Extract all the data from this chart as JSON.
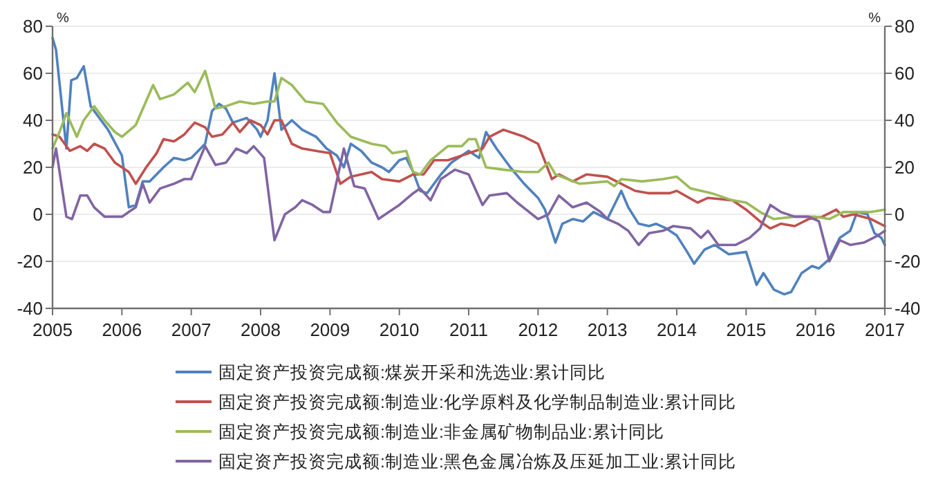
{
  "chart_data": {
    "type": "line",
    "ylabel": "%",
    "y2label": "%",
    "xlim": [
      2005,
      2017
    ],
    "xticks": [
      2005,
      2006,
      2007,
      2008,
      2009,
      2010,
      2011,
      2012,
      2013,
      2014,
      2015,
      2016,
      2017
    ],
    "ylim": [
      -40,
      80
    ],
    "yticks": [
      -40,
      -20,
      0,
      20,
      40,
      60,
      80
    ],
    "y2lim": [
      -40,
      80
    ],
    "y2ticks": [
      -40,
      -20,
      0,
      20,
      40,
      60,
      80
    ],
    "grid": "y",
    "legend": "bottom",
    "marker": "none",
    "line_style": "solid",
    "series": [
      {
        "name": "固定资产投资完成额:煤炭开采和洗选业:累计同比",
        "color": "#4f81bd",
        "x": [
          2005.0,
          2005.05,
          2005.2,
          2005.27,
          2005.35,
          2005.45,
          2005.55,
          2005.7,
          2005.8,
          2006.0,
          2006.1,
          2006.2,
          2006.3,
          2006.4,
          2006.6,
          2006.75,
          2006.9,
          2007.0,
          2007.2,
          2007.3,
          2007.4,
          2007.5,
          2007.6,
          2007.8,
          2007.95,
          2008.0,
          2008.1,
          2008.2,
          2008.3,
          2008.45,
          2008.6,
          2008.8,
          2008.95,
          2009.1,
          2009.2,
          2009.3,
          2009.45,
          2009.6,
          2009.75,
          2009.85,
          2010.0,
          2010.1,
          2010.2,
          2010.3,
          2010.4,
          2010.6,
          2010.75,
          2010.9,
          2011.0,
          2011.15,
          2011.25,
          2011.4,
          2011.6,
          2011.8,
          2012.0,
          2012.1,
          2012.25,
          2012.35,
          2012.5,
          2012.65,
          2012.8,
          2013.0,
          2013.2,
          2013.3,
          2013.45,
          2013.6,
          2013.7,
          2013.85,
          2014.0,
          2014.15,
          2014.25,
          2014.4,
          2014.55,
          2014.75,
          2015.0,
          2015.15,
          2015.25,
          2015.4,
          2015.55,
          2015.65,
          2015.8,
          2015.95,
          2016.05,
          2016.2,
          2016.35,
          2016.5,
          2016.6,
          2016.75,
          2016.85,
          2016.95,
          2017.0
        ],
        "values": [
          75,
          70,
          28,
          57,
          58,
          63,
          46,
          40,
          36,
          25,
          3,
          4,
          14,
          14,
          20,
          24,
          23,
          24,
          30,
          44,
          47,
          45,
          39,
          41,
          36,
          33,
          40,
          60,
          36,
          40,
          36,
          33,
          28,
          25,
          20,
          30,
          27,
          22,
          20,
          18,
          23,
          24,
          18,
          10,
          9,
          17,
          22,
          25,
          27,
          24,
          35,
          28,
          20,
          13,
          7,
          2,
          -12,
          -4,
          -2,
          -3,
          1,
          -2,
          10,
          3,
          -4,
          -5,
          -4,
          -6,
          -9,
          -16,
          -21,
          -15,
          -13,
          -17,
          -16,
          -30,
          -25,
          -32,
          -34,
          -33,
          -25,
          -22,
          -23,
          -19,
          -10,
          -7,
          1,
          0,
          -8,
          -10,
          -13
        ]
      },
      {
        "name": "固定资产投资完成额:制造业:化学原料及化学制品制造业:累计同比",
        "color": "#c0504d",
        "x": [
          2005.0,
          2005.1,
          2005.25,
          2005.4,
          2005.5,
          2005.6,
          2005.75,
          2005.9,
          2006.1,
          2006.2,
          2006.35,
          2006.5,
          2006.6,
          2006.75,
          2006.9,
          2007.05,
          2007.2,
          2007.3,
          2007.45,
          2007.6,
          2007.7,
          2007.85,
          2008.0,
          2008.1,
          2008.2,
          2008.3,
          2008.45,
          2008.6,
          2008.8,
          2009.0,
          2009.15,
          2009.3,
          2009.45,
          2009.6,
          2009.75,
          2010.0,
          2010.2,
          2010.35,
          2010.5,
          2010.7,
          2011.0,
          2011.2,
          2011.3,
          2011.5,
          2011.8,
          2012.0,
          2012.2,
          2012.3,
          2012.5,
          2012.7,
          2013.0,
          2013.2,
          2013.4,
          2013.6,
          2013.9,
          2014.0,
          2014.3,
          2014.45,
          2014.8,
          2015.0,
          2015.2,
          2015.35,
          2015.5,
          2015.7,
          2015.9,
          2016.1,
          2016.3,
          2016.4,
          2016.55,
          2016.8,
          2017.0
        ],
        "values": [
          34,
          33,
          27,
          29,
          27,
          30,
          28,
          22,
          18,
          13,
          20,
          26,
          32,
          31,
          34,
          39,
          37,
          33,
          34,
          39,
          35,
          40,
          38,
          34,
          40,
          40,
          30,
          28,
          27,
          26,
          13,
          16,
          17,
          18,
          15,
          14,
          17,
          17,
          23,
          23,
          26,
          28,
          33,
          36,
          33,
          30,
          15,
          17,
          14,
          17,
          16,
          13,
          10,
          9,
          9,
          10,
          5,
          7,
          6,
          2,
          -3,
          -6,
          -4,
          -5,
          -2,
          -1,
          2,
          -1,
          0,
          -2,
          -5
        ]
      },
      {
        "name": "固定资产投资完成额:制造业:非金属矿物制品业:累计同比",
        "color": "#9bbb59",
        "x": [
          2005.0,
          2005.1,
          2005.2,
          2005.35,
          2005.45,
          2005.6,
          2005.75,
          2005.9,
          2006.0,
          2006.2,
          2006.45,
          2006.55,
          2006.75,
          2006.95,
          2007.05,
          2007.2,
          2007.35,
          2007.5,
          2007.7,
          2007.9,
          2008.1,
          2008.2,
          2008.3,
          2008.45,
          2008.65,
          2008.9,
          2009.1,
          2009.3,
          2009.6,
          2009.8,
          2009.9,
          2010.1,
          2010.2,
          2010.3,
          2010.45,
          2010.7,
          2010.9,
          2011.0,
          2011.1,
          2011.25,
          2011.5,
          2011.8,
          2012.0,
          2012.15,
          2012.25,
          2012.6,
          2013.0,
          2013.1,
          2013.2,
          2013.5,
          2013.8,
          2014.0,
          2014.2,
          2014.5,
          2014.8,
          2015.0,
          2015.2,
          2015.4,
          2015.7,
          2016.0,
          2016.2,
          2016.4,
          2016.8,
          2017.0
        ],
        "values": [
          28,
          35,
          43,
          33,
          40,
          46,
          40,
          35,
          33,
          38,
          55,
          49,
          51,
          56,
          52,
          61,
          45,
          46,
          48,
          47,
          48,
          48,
          58,
          55,
          48,
          47,
          39,
          33,
          30,
          29,
          26,
          27,
          18,
          17,
          23,
          29,
          29,
          32,
          32,
          20,
          19,
          18,
          18,
          22,
          17,
          13,
          14,
          12,
          15,
          14,
          15,
          16,
          11,
          9,
          6,
          5,
          1,
          -2,
          -1,
          -1,
          -2,
          1,
          1,
          2
        ]
      },
      {
        "name": "固定资产投资完成额:制造业:黑色金属冶炼及压延加工业:累计同比",
        "color": "#8064a2",
        "x": [
          2005.0,
          2005.05,
          2005.2,
          2005.28,
          2005.4,
          2005.5,
          2005.6,
          2005.75,
          2006.0,
          2006.1,
          2006.2,
          2006.3,
          2006.4,
          2006.55,
          2006.75,
          2006.9,
          2007.0,
          2007.2,
          2007.35,
          2007.5,
          2007.65,
          2007.8,
          2007.9,
          2008.05,
          2008.2,
          2008.35,
          2008.5,
          2008.6,
          2008.75,
          2008.9,
          2009.0,
          2009.2,
          2009.35,
          2009.5,
          2009.7,
          2009.85,
          2010.0,
          2010.2,
          2010.3,
          2010.45,
          2010.6,
          2010.8,
          2011.0,
          2011.2,
          2011.3,
          2011.55,
          2011.7,
          2012.0,
          2012.15,
          2012.3,
          2012.5,
          2012.7,
          2012.9,
          2013.0,
          2013.15,
          2013.3,
          2013.45,
          2013.6,
          2013.8,
          2013.95,
          2014.2,
          2014.35,
          2014.45,
          2014.6,
          2014.85,
          2015.05,
          2015.2,
          2015.35,
          2015.5,
          2015.7,
          2015.9,
          2016.05,
          2016.2,
          2016.35,
          2016.5,
          2016.7,
          2016.9,
          2017.0
        ],
        "values": [
          20,
          28,
          -1,
          -2,
          8,
          8,
          3,
          -1,
          -1,
          1,
          3,
          13,
          5,
          11,
          13,
          15,
          15,
          29,
          21,
          22,
          28,
          26,
          29,
          24,
          -11,
          0,
          3,
          6,
          4,
          1,
          1,
          28,
          12,
          11,
          -2,
          1,
          4,
          9,
          11,
          6,
          15,
          19,
          17,
          4,
          8,
          9,
          5,
          -2,
          0,
          8,
          3,
          5,
          1,
          -2,
          -4,
          -7,
          -13,
          -8,
          -7,
          -5,
          -6,
          -10,
          -7,
          -13,
          -13,
          -10,
          -6,
          4,
          1,
          -1,
          -1,
          -3,
          -20,
          -11,
          -13,
          -12,
          -9,
          -7
        ]
      }
    ]
  }
}
